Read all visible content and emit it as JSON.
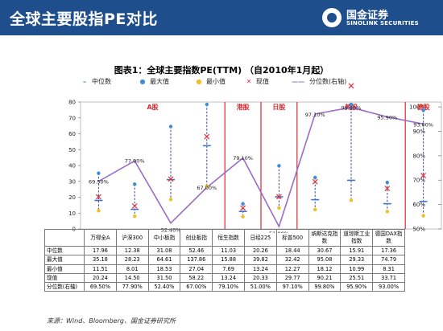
{
  "header": {
    "title": "全球主要股指PE对比"
  },
  "logo": {
    "cn": "国金证券",
    "en": "SINOLINK SECURITIES"
  },
  "chart_title": "图表1：全球主要指数PE(TTM) （自2010年1月起）",
  "legend": {
    "median": "中位数",
    "max": "最大值",
    "min": "最小值",
    "current": "现值",
    "percentile": "分位数(右轴)"
  },
  "colors": {
    "header": "#1f4e8c",
    "median": "#4472c4",
    "max": "#3a8fd8",
    "min": "#f0c020",
    "current": "#e0303a",
    "percentile": "#9b6bc6",
    "separator": "#d8282f",
    "group_label": "#d8282f"
  },
  "chart_data": {
    "type": "mixed",
    "categories": [
      "万得全A",
      "沪深300",
      "中小板指",
      "创业板指",
      "恒生指数",
      "日经225",
      "标普500",
      "纳斯达克指数",
      "道琼斯工业指数",
      "德国DAX指数"
    ],
    "groups": [
      {
        "label": "A股",
        "categories": [
          0,
          1,
          2,
          3
        ]
      },
      {
        "label": "港股",
        "categories": [
          4
        ]
      },
      {
        "label": "日股",
        "categories": [
          5
        ]
      },
      {
        "label": "美股",
        "categories": [
          6,
          7,
          8
        ]
      },
      {
        "label": "德股",
        "categories": [
          9
        ]
      }
    ],
    "series": [
      {
        "name": "中位数",
        "axis": "left",
        "values": [
          17.96,
          12.38,
          31.08,
          52.46,
          11.03,
          20.26,
          18.44,
          30.67,
          15.91,
          17.36
        ]
      },
      {
        "name": "最大值",
        "axis": "left",
        "values": [
          35.18,
          28.23,
          64.61,
          137.86,
          15.88,
          39.82,
          32.42,
          95.08,
          29.33,
          74.79
        ]
      },
      {
        "name": "最小值",
        "axis": "left",
        "values": [
          11.51,
          8.01,
          18.53,
          27.04,
          7.69,
          13.24,
          12.27,
          18.12,
          10.99,
          8.31
        ]
      },
      {
        "name": "现值",
        "axis": "left",
        "values": [
          20.24,
          14.5,
          31.5,
          58.22,
          13.24,
          20.33,
          29.77,
          90.21,
          25.51,
          33.71
        ]
      },
      {
        "name": "分位数(右轴)",
        "axis": "right",
        "values": [
          69.5,
          77.9,
          52.4,
          67.0,
          79.1,
          51.0,
          97.1,
          99.8,
          95.9,
          93.0
        ]
      }
    ],
    "point_labels": [
      "69.50%",
      "77.90%",
      "52.40%",
      "67.00%",
      "79.10%",
      "51.00%",
      "97.10%",
      "99.80%",
      "95.90%",
      "93.00%"
    ],
    "ylim_left": [
      0,
      80
    ],
    "yticks_left": [
      0,
      10,
      20,
      30,
      40,
      50,
      60,
      70,
      80
    ],
    "ylim_right": [
      50,
      102
    ],
    "yticks_right": [
      "50%",
      "60%",
      "70%",
      "80%",
      "90%",
      "100%"
    ],
    "yticks_right_values": [
      50,
      60,
      70,
      80,
      90,
      100
    ],
    "separators_after": [
      3,
      4,
      5,
      8
    ]
  },
  "table": {
    "categories_display": [
      "万得全A",
      "沪深300",
      "中小板指",
      "创业板指",
      "恒生指数",
      "日经225",
      "标普500",
      "纳斯达克指数",
      "道琼斯工业指数",
      "德国DAX指数"
    ],
    "rows": [
      {
        "label": "中位数",
        "cells": [
          "17.96",
          "12.38",
          "31.08",
          "52.46",
          "11.03",
          "20.26",
          "18.44",
          "30.67",
          "15.91",
          "17.36"
        ]
      },
      {
        "label": "最大值",
        "cells": [
          "35.18",
          "28.23",
          "64.61",
          "137.86",
          "15.88",
          "39.82",
          "32.42",
          "95.08",
          "29.33",
          "74.79"
        ]
      },
      {
        "label": "最小值",
        "cells": [
          "11.51",
          "8.01",
          "18.53",
          "27.04",
          "7.69",
          "13.24",
          "12.27",
          "18.12",
          "10.99",
          "8.31"
        ]
      },
      {
        "label": "现值",
        "cells": [
          "20.24",
          "14.50",
          "31.50",
          "58.22",
          "13.24",
          "20.33",
          "29.77",
          "90.21",
          "25.51",
          "33.71"
        ]
      },
      {
        "label": "分位数(右轴)",
        "cells": [
          "69.50%",
          "77.90%",
          "52.40%",
          "67.00%",
          "79.10%",
          "51.00%",
          "97.10%",
          "99.80%",
          "95.90%",
          "93.00%"
        ]
      }
    ]
  },
  "source": "来源：Wind、Bloomberg、国金证券研究所"
}
